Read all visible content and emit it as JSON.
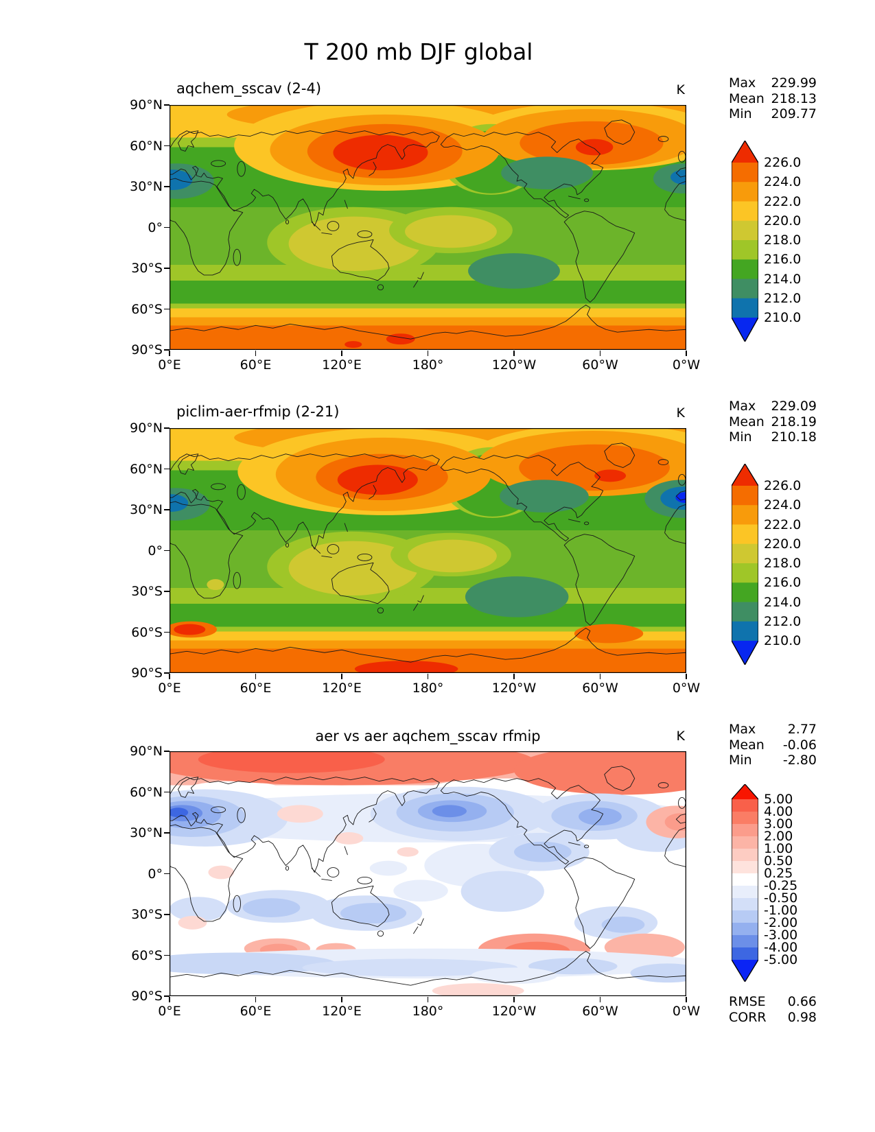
{
  "figure_title": "T 200 mb DJF global",
  "axis": {
    "x_ticks": [
      "0°E",
      "60°E",
      "120°E",
      "180°",
      "120°W",
      "60°W",
      "0°W"
    ],
    "y_ticks": [
      "90°N",
      "60°N",
      "30°N",
      "0°",
      "30°S",
      "60°S",
      "90°S"
    ]
  },
  "panels": [
    {
      "title": "aqchem_sscav (2-4)",
      "units": "K",
      "stats": [
        [
          "Max",
          "229.99"
        ],
        [
          "Mean",
          "218.13"
        ],
        [
          "Min",
          "209.77"
        ]
      ],
      "colorbar": {
        "tick_labels": [
          "226.0",
          "224.0",
          "222.0",
          "220.0",
          "218.0",
          "216.0",
          "214.0",
          "212.0",
          "210.0"
        ],
        "colors": [
          "#ee2c00",
          "#f56d00",
          "#f89b0b",
          "#fcc525",
          "#cfc831",
          "#9fc628",
          "#44a622",
          "#3f8e63",
          "#0f73ad",
          "#0727f0"
        ]
      }
    },
    {
      "title": "piclim-aer-rfmip (2-21)",
      "units": "K",
      "stats": [
        [
          "Max",
          "229.09"
        ],
        [
          "Mean",
          "218.19"
        ],
        [
          "Min",
          "210.18"
        ]
      ],
      "colorbar": {
        "tick_labels": [
          "226.0",
          "224.0",
          "222.0",
          "220.0",
          "218.0",
          "216.0",
          "214.0",
          "212.0",
          "210.0"
        ],
        "colors": [
          "#ee2c00",
          "#f56d00",
          "#f89b0b",
          "#fcc525",
          "#cfc831",
          "#9fc628",
          "#44a622",
          "#3f8e63",
          "#0f73ad",
          "#0727f0"
        ]
      }
    },
    {
      "title": "aer vs aer aqchem_sscav rfmip",
      "units": "K",
      "stats": [
        [
          "Max",
          "2.77"
        ],
        [
          "Mean",
          "-0.06"
        ],
        [
          "Min",
          "-2.80"
        ]
      ],
      "score_stats": [
        [
          "RMSE",
          "0.66"
        ],
        [
          "CORR",
          "0.98"
        ]
      ],
      "colorbar": {
        "tick_labels": [
          "5.00",
          "4.00",
          "3.00",
          "2.00",
          "1.00",
          "0.50",
          "0.25",
          "-0.25",
          "-0.50",
          "-1.00",
          "-2.00",
          "-3.00",
          "-4.00",
          "-5.00"
        ],
        "colors": [
          "#f81500",
          "#f9604a",
          "#fa7d65",
          "#fb9c8b",
          "#fcb4a6",
          "#fdccc2",
          "#fee3dd",
          "#ffffff",
          "#e8eefb",
          "#d3dff8",
          "#b7cbf4",
          "#94b0ef",
          "#6c8fe8",
          "#3d67e2",
          "#0b24f5"
        ]
      }
    }
  ],
  "chart_data": [
    {
      "type": "heatmap",
      "subtype": "filled_contour_map",
      "title": "aqchem_sscav (2-4)",
      "variable": "T",
      "level": "200 mb",
      "season": "DJF",
      "region": "global",
      "units": "K",
      "x_tick_labels": [
        "0°E",
        "60°E",
        "120°E",
        "180°",
        "120°W",
        "60°W",
        "0°W"
      ],
      "y_tick_labels": [
        "90°N",
        "60°N",
        "30°N",
        "0°",
        "30°S",
        "60°S",
        "90°S"
      ],
      "contour_levels": [
        210,
        212,
        214,
        216,
        218,
        220,
        222,
        224,
        226
      ],
      "stats": {
        "max": 229.99,
        "mean": 218.13,
        "min": 209.77
      },
      "palette_low_to_high": [
        "#0727f0",
        "#0f73ad",
        "#3f8e63",
        "#44a622",
        "#9fc628",
        "#cfc831",
        "#fcc525",
        "#f89b0b",
        "#f56d00",
        "#ee2c00"
      ]
    },
    {
      "type": "heatmap",
      "subtype": "filled_contour_map",
      "title": "piclim-aer-rfmip (2-21)",
      "variable": "T",
      "level": "200 mb",
      "season": "DJF",
      "region": "global",
      "units": "K",
      "x_tick_labels": [
        "0°E",
        "60°E",
        "120°E",
        "180°",
        "120°W",
        "60°W",
        "0°W"
      ],
      "y_tick_labels": [
        "90°N",
        "60°N",
        "30°N",
        "0°",
        "30°S",
        "60°S",
        "90°S"
      ],
      "contour_levels": [
        210,
        212,
        214,
        216,
        218,
        220,
        222,
        224,
        226
      ],
      "stats": {
        "max": 229.09,
        "mean": 218.19,
        "min": 210.18
      },
      "palette_low_to_high": [
        "#0727f0",
        "#0f73ad",
        "#3f8e63",
        "#44a622",
        "#9fc628",
        "#cfc831",
        "#fcc525",
        "#f89b0b",
        "#f56d00",
        "#ee2c00"
      ]
    },
    {
      "type": "heatmap",
      "subtype": "filled_contour_difference_map",
      "title": "aer vs aer aqchem_sscav rfmip",
      "variable": "T difference",
      "level": "200 mb",
      "season": "DJF",
      "region": "global",
      "units": "K",
      "x_tick_labels": [
        "0°E",
        "60°E",
        "120°E",
        "180°",
        "120°W",
        "60°W",
        "0°W"
      ],
      "y_tick_labels": [
        "90°N",
        "60°N",
        "30°N",
        "0°",
        "30°S",
        "60°S",
        "90°S"
      ],
      "contour_levels": [
        -5,
        -4,
        -3,
        -2,
        -1,
        -0.5,
        -0.25,
        0.25,
        0.5,
        1,
        2,
        3,
        4,
        5
      ],
      "stats": {
        "max": 2.77,
        "mean": -0.06,
        "min": -2.8,
        "rmse": 0.66,
        "corr": 0.98
      },
      "palette_low_to_high": [
        "#0b24f5",
        "#3d67e2",
        "#6c8fe8",
        "#94b0ef",
        "#b7cbf4",
        "#d3dff8",
        "#e8eefb",
        "#ffffff",
        "#fee3dd",
        "#fdccc2",
        "#fcb4a6",
        "#fb9c8b",
        "#fa7d65",
        "#f9604a",
        "#f81500"
      ]
    }
  ]
}
